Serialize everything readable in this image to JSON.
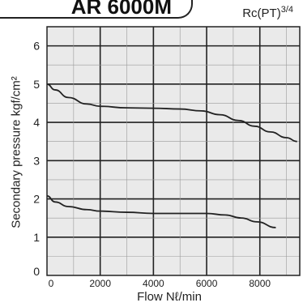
{
  "header": {
    "title": "AR 6000M",
    "port": "Rc(PT)",
    "port_size": "3/4"
  },
  "colors": {
    "plot_background": "#eaeaea",
    "grid": "#222222",
    "curve": "#222222"
  },
  "chart_data": {
    "type": "line",
    "title": "AR 6000M",
    "xlabel": "Flow Nℓ/min",
    "ylabel": "Secondary pressure kgf/cm²",
    "xlim": [
      0,
      9500
    ],
    "ylim": [
      0,
      6.5
    ],
    "x_ticks": [
      0,
      2000,
      4000,
      6000,
      8000
    ],
    "y_ticks": [
      0,
      1,
      2,
      3,
      4,
      5,
      6
    ],
    "grid": true,
    "series": [
      {
        "x": [
          0,
          300,
          800,
          1500,
          2000,
          3000,
          4000,
          5000,
          5800,
          6500,
          7200,
          7800,
          8400,
          9000,
          9400
        ],
        "y": [
          5.0,
          4.85,
          4.65,
          4.48,
          4.42,
          4.38,
          4.37,
          4.35,
          4.3,
          4.2,
          4.05,
          3.9,
          3.75,
          3.6,
          3.5
        ]
      },
      {
        "x": [
          0,
          300,
          800,
          1500,
          2000,
          3000,
          4000,
          5000,
          6000,
          6700,
          7300,
          7900,
          8600
        ],
        "y": [
          2.08,
          1.92,
          1.8,
          1.72,
          1.68,
          1.65,
          1.62,
          1.62,
          1.62,
          1.58,
          1.5,
          1.4,
          1.25
        ]
      }
    ]
  }
}
